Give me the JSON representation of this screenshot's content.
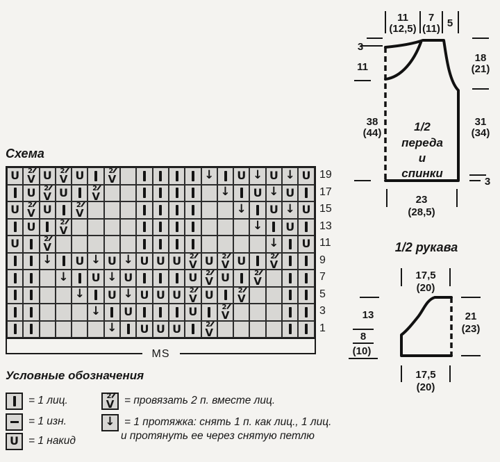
{
  "colors": {
    "paper": "#f4f3f0",
    "cell_fill": "#d8d7d4",
    "ink": "#1a1a1a"
  },
  "chart": {
    "title": "Схема",
    "ms_label": "MS",
    "rows": [
      {
        "number": "19",
        "cells": [
          "U",
          "V2",
          "U",
          "V2",
          "U",
          "I",
          "V2",
          "-",
          "I",
          "I",
          "I",
          "I",
          "A",
          "I",
          "U",
          "A",
          "U",
          "A",
          "U"
        ]
      },
      {
        "number": "17",
        "cells": [
          "I",
          "U",
          "V2",
          "U",
          "I",
          "V2",
          "-",
          "-",
          "I",
          "I",
          "I",
          "I",
          "-",
          "A",
          "I",
          "U",
          "A",
          "U",
          "I"
        ]
      },
      {
        "number": "15",
        "cells": [
          "U",
          "V2",
          "U",
          "I",
          "V2",
          "-",
          "-",
          "-",
          "I",
          "I",
          "I",
          "I",
          "-",
          "-",
          "A",
          "I",
          "U",
          "A",
          "U"
        ]
      },
      {
        "number": "13",
        "cells": [
          "I",
          "U",
          "I",
          "V2",
          "-",
          "-",
          "-",
          "-",
          "I",
          "I",
          "I",
          "I",
          "-",
          "-",
          "-",
          "A",
          "I",
          "U",
          "I"
        ]
      },
      {
        "number": "11",
        "cells": [
          "U",
          "I",
          "V2",
          "-",
          "-",
          "-",
          "-",
          "-",
          "I",
          "I",
          "I",
          "I",
          "-",
          "-",
          "-",
          "-",
          "A",
          "I",
          "U"
        ]
      },
      {
        "number": "9",
        "cells": [
          "I",
          "I",
          "A",
          "I",
          "U",
          "A",
          "U",
          "A",
          "U",
          "U",
          "U",
          "V2",
          "U",
          "V2",
          "U",
          "I",
          "V2",
          "I",
          "I"
        ]
      },
      {
        "number": "7",
        "cells": [
          "I",
          "I",
          "-",
          "A",
          "I",
          "U",
          "A",
          "U",
          "I",
          "I",
          "I",
          "U",
          "V2",
          "U",
          "I",
          "V2",
          "-",
          "I",
          "I"
        ]
      },
      {
        "number": "5",
        "cells": [
          "I",
          "I",
          "-",
          "-",
          "A",
          "I",
          "U",
          "A",
          "U",
          "U",
          "U",
          "V2",
          "U",
          "I",
          "V2",
          "-",
          "-",
          "I",
          "I"
        ]
      },
      {
        "number": "3",
        "cells": [
          "I",
          "I",
          "-",
          "-",
          "-",
          "A",
          "I",
          "U",
          "I",
          "I",
          "I",
          "U",
          "I",
          "V2",
          "-",
          "-",
          "-",
          "I",
          "I"
        ]
      },
      {
        "number": "1",
        "cells": [
          "I",
          "I",
          "-",
          "-",
          "-",
          "-",
          "A",
          "I",
          "U",
          "U",
          "U",
          "I",
          "V2",
          "-",
          "-",
          "-",
          "-",
          "I",
          "I"
        ]
      }
    ]
  },
  "legend": {
    "title": "Условные обозначения",
    "items_left": [
      {
        "symbol": "I",
        "text": "= 1 лиц."
      },
      {
        "symbol": "-",
        "text": "= 1 изн."
      },
      {
        "symbol": "U",
        "text": "= 1 накид"
      }
    ],
    "items_right": [
      {
        "symbol": "V2",
        "text": "= провязать 2 п. вместе лиц."
      },
      {
        "symbol": "A",
        "text": "= 1 протяжка: снять 1 п. как лиц., 1 лиц.",
        "text2": "и протянуть ее через снятую петлю"
      }
    ]
  },
  "schematics": {
    "front_back": {
      "title_lines": [
        "1/2",
        "переда",
        "и",
        "спинки"
      ],
      "top_width_1": "11",
      "top_width_1_alt": "(12,5)",
      "top_width_2": "7",
      "top_width_2_alt": "(11)",
      "top_width_3": "5",
      "back_neck_depth": "3",
      "front_neck_depth": "11",
      "side_height": "38",
      "side_height_alt": "(44)",
      "armhole_height": "18",
      "armhole_height_alt": "(21)",
      "body_height": "31",
      "body_height_alt": "(34)",
      "hem_height": "3",
      "bottom_width": "23",
      "bottom_width_alt": "(28,5)"
    },
    "sleeve": {
      "title": "1/2 рукава",
      "top_width": "17,5",
      "top_width_alt": "(20)",
      "cap_height": "13",
      "lower_height": "8",
      "lower_height_alt": "(10)",
      "side_height": "21",
      "side_height_alt": "(23)",
      "bottom_width": "17,5",
      "bottom_width_alt": "(20)"
    }
  }
}
